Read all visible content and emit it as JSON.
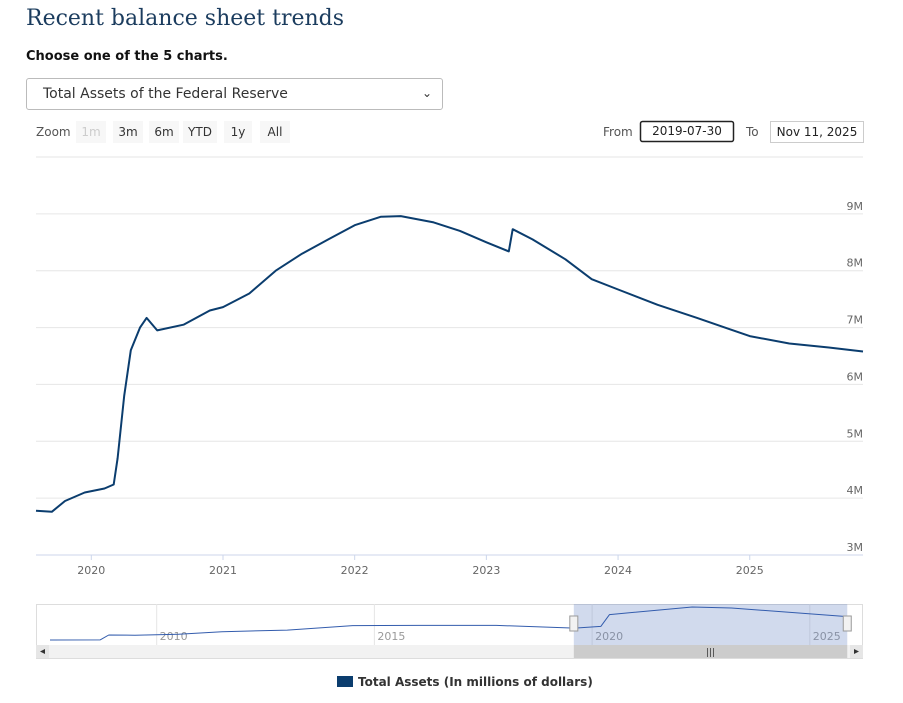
{
  "header": {
    "title": "Recent balance sheet trends",
    "prompt": "Choose one of the 5 charts.",
    "selected": "Total Assets of the Federal Reserve"
  },
  "controls": {
    "zoom_label": "Zoom",
    "zoom_buttons": [
      "1m",
      "3m",
      "6m",
      "YTD",
      "1y",
      "All"
    ],
    "from_label": "From",
    "from_value": "2019-07-30",
    "to_label": "To",
    "to_value": "Nov 11, 2025"
  },
  "chart_data": [
    {
      "type": "line",
      "x": [
        2019.58,
        2019.7,
        2019.8,
        2019.95,
        2020.1,
        2020.17,
        2020.2,
        2020.25,
        2020.3,
        2020.37,
        2020.42,
        2020.5,
        2020.7,
        2020.9,
        2021.0,
        2021.2,
        2021.4,
        2021.6,
        2021.8,
        2022.0,
        2022.2,
        2022.35,
        2022.6,
        2022.8,
        2023.0,
        2023.17,
        2023.2,
        2023.35,
        2023.6,
        2023.8,
        2024.0,
        2024.3,
        2024.6,
        2024.85,
        2025.0,
        2025.3,
        2025.6,
        2025.86
      ],
      "series": [
        {
          "name": "Total Assets (In millions of dollars)",
          "color": "#0b3d6e",
          "values": [
            3780000,
            3760000,
            3950000,
            4100000,
            4170000,
            4240000,
            4700000,
            5800000,
            6600000,
            7000000,
            7170000,
            6950000,
            7050000,
            7300000,
            7360000,
            7600000,
            8000000,
            8300000,
            8550000,
            8800000,
            8950000,
            8960000,
            8850000,
            8700000,
            8500000,
            8340000,
            8730000,
            8550000,
            8200000,
            7850000,
            7670000,
            7400000,
            7170000,
            6970000,
            6850000,
            6720000,
            6650000,
            6580000
          ]
        }
      ],
      "xlim": [
        2019.58,
        2025.86
      ],
      "xticks": [
        2020,
        2021,
        2022,
        2023,
        2024,
        2025
      ],
      "ylim": [
        3000000,
        10000000
      ],
      "yticks": [
        {
          "value": 3000000,
          "label": "3M"
        },
        {
          "value": 4000000,
          "label": "4M"
        },
        {
          "value": 5000000,
          "label": "5M"
        },
        {
          "value": 6000000,
          "label": "6M"
        },
        {
          "value": 7000000,
          "label": "7M"
        },
        {
          "value": 8000000,
          "label": "8M"
        },
        {
          "value": 9000000,
          "label": "9M"
        }
      ],
      "grid": true,
      "legend": "bottom"
    },
    {
      "type": "line",
      "x": [
        2007.55,
        2008.7,
        2008.9,
        2009.5,
        2010.5,
        2011.5,
        2013.0,
        2014.5,
        2016.0,
        2017.8,
        2019.6,
        2020.2,
        2020.4,
        2022.3,
        2023.2,
        2025.86
      ],
      "values": [
        880000,
        900000,
        2100000,
        2050000,
        2300000,
        2900000,
        3300000,
        4400000,
        4450000,
        4450000,
        3800000,
        4200000,
        7100000,
        8950000,
        8700000,
        6600000
      ],
      "color": "#335cad",
      "xlim": [
        2007.55,
        2025.9
      ],
      "xticks": [
        2010,
        2015,
        2020,
        2025
      ]
    }
  ]
}
